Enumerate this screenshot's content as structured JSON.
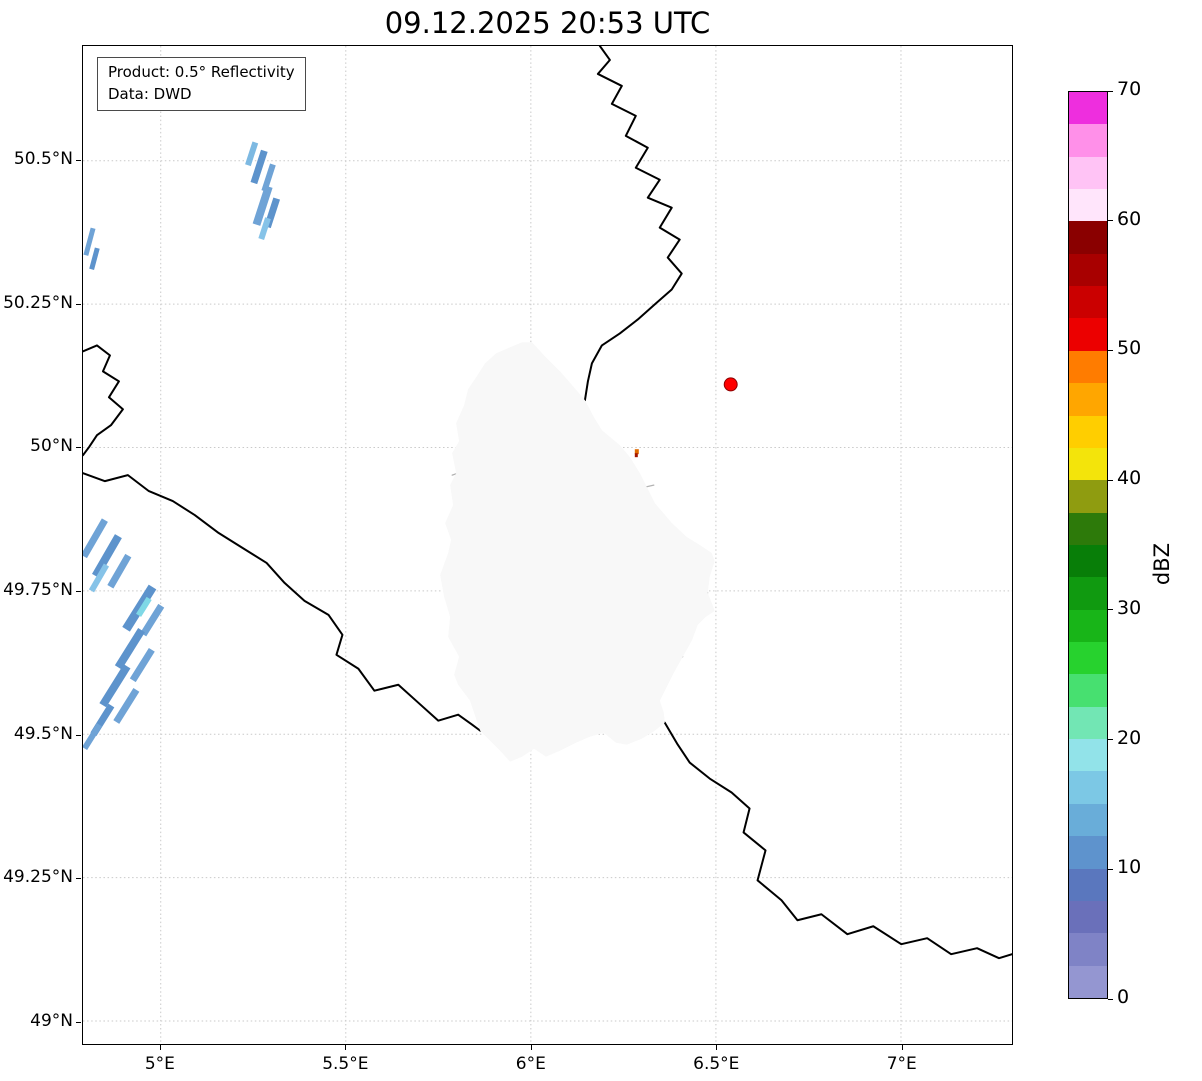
{
  "title": "09.12.2025 20:53 UTC",
  "info_box": {
    "product": "Product: 0.5° Reflectivity",
    "data_source": "Data: DWD"
  },
  "axes": {
    "lon_range": [
      4.79,
      7.3
    ],
    "lat_range": [
      48.96,
      50.7
    ],
    "x_ticks": [
      {
        "label": "5°E",
        "lon": 5.0
      },
      {
        "label": "5.5°E",
        "lon": 5.5
      },
      {
        "label": "6°E",
        "lon": 6.0
      },
      {
        "label": "6.5°E",
        "lon": 6.5
      },
      {
        "label": "7°E",
        "lon": 7.0
      }
    ],
    "y_ticks": [
      {
        "label": "50.5°N",
        "lat": 50.5
      },
      {
        "label": "50.25°N",
        "lat": 50.25
      },
      {
        "label": "50°N",
        "lat": 50.0
      },
      {
        "label": "49.75°N",
        "lat": 49.75
      },
      {
        "label": "49.5°N",
        "lat": 49.5
      },
      {
        "label": "49.25°N",
        "lat": 49.25
      },
      {
        "label": "49°N",
        "lat": 49.0
      }
    ]
  },
  "colorbar": {
    "label": "dBZ",
    "min": 0,
    "max": 70,
    "ticks": [
      0,
      10,
      20,
      30,
      40,
      50,
      60,
      70
    ],
    "colors_bottom_to_top": [
      "#9496d1",
      "#7f83c6",
      "#6a70ba",
      "#5a77be",
      "#5e93cd",
      "#69add9",
      "#7cc8e5",
      "#92e3e9",
      "#72e6b4",
      "#47e070",
      "#27d22e",
      "#18b518",
      "#109a10",
      "#087e08",
      "#2d7a0a",
      "#8f9c10",
      "#f3e40b",
      "#ffce00",
      "#ffa600",
      "#ff7c00",
      "#ec0000",
      "#cb0000",
      "#a80000",
      "#8a0000",
      "#ffe5fb",
      "#ffc3f5",
      "#ff90e9",
      "#ee2ede"
    ]
  },
  "map": {
    "country_border_color": "#000000",
    "district_border_color": "#b3b3b3",
    "echo_palette": [
      "#86c3e8",
      "#6fa3d6",
      "#5d93cc",
      "#7fd8e6"
    ],
    "radar_site_marker": {
      "lon": 6.54,
      "lat": 50.11,
      "color": "#ff0000"
    }
  }
}
